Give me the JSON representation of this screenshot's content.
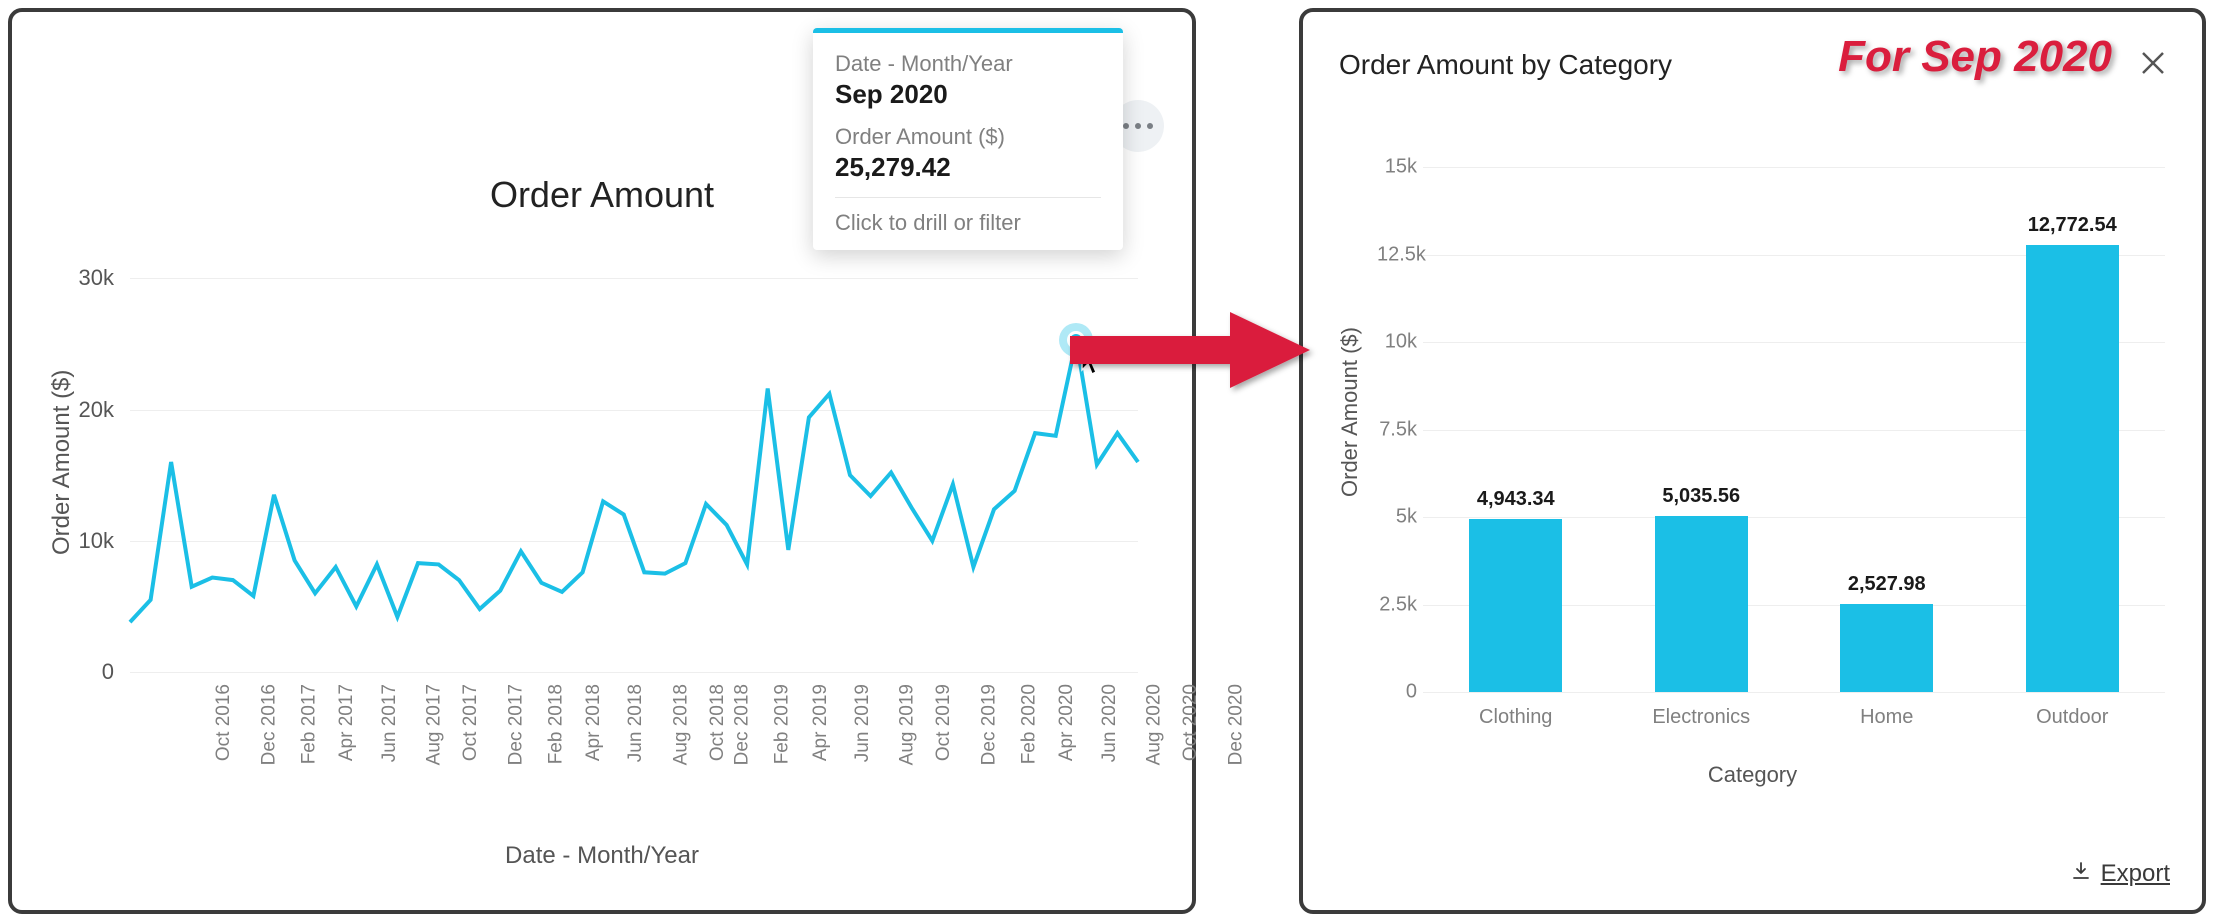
{
  "line_chart": {
    "type": "line",
    "title": "Order Amount",
    "y_label": "Order Amount ($)",
    "x_label": "Date - Month/Year",
    "line_color": "#1bbfe6",
    "line_width": 4,
    "grid_color": "#eeeeee",
    "background_color": "#ffffff",
    "title_fontsize": 36,
    "axis_label_fontsize": 24,
    "tick_fontsize": 22,
    "ylim": [
      0,
      32000
    ],
    "yticks": [
      {
        "v": 0,
        "label": "0"
      },
      {
        "v": 10000,
        "label": "10k"
      },
      {
        "v": 20000,
        "label": "20k"
      },
      {
        "v": 30000,
        "label": "30k"
      }
    ],
    "x_labels": [
      "Oct 2016",
      "Dec 2016",
      "Feb 2017",
      "Apr 2017",
      "Jun 2017",
      "Aug 2017",
      "Oct 2017",
      "Dec 2017",
      "Feb 2018",
      "Apr 2018",
      "Jun 2018",
      "Aug 2018",
      "Oct 2018",
      "Dec 2018",
      "Feb 2019",
      "Apr 2019",
      "Jun 2019",
      "Aug 2019",
      "Oct 2019",
      "Dec 2019",
      "Feb 2020",
      "Apr 2020",
      "Jun 2020",
      "Aug 2020",
      "Oct 2020",
      "Dec 2020"
    ],
    "values": [
      3800,
      5500,
      16000,
      6500,
      7200,
      7000,
      5800,
      13500,
      8500,
      6000,
      8000,
      5000,
      8200,
      4200,
      8300,
      8200,
      7000,
      4800,
      6200,
      9200,
      6800,
      6100,
      7600,
      13000,
      12000,
      7600,
      7500,
      8300,
      12800,
      11200,
      8200,
      21600,
      9300,
      19400,
      21200,
      15000,
      13400,
      15200,
      12500,
      10000,
      14300,
      8000,
      12400,
      13800,
      18200,
      18000,
      25279,
      15800,
      18200,
      16000
    ],
    "highlight_index": 46,
    "tooltip": {
      "field1_label": "Date - Month/Year",
      "field1_value": "Sep 2020",
      "field2_label": "Order Amount ($)",
      "field2_value": "25,279.42",
      "hint": "Click to drill or filter",
      "accent_color": "#1bbfe6"
    }
  },
  "bar_chart": {
    "type": "bar",
    "title": "Order Amount by Category",
    "y_label": "Order Amount ($)",
    "x_label": "Category",
    "bar_color": "#1bbfe6",
    "grid_color": "#eeeeee",
    "background_color": "#ffffff",
    "title_fontsize": 28,
    "axis_label_fontsize": 22,
    "tick_fontsize": 20,
    "bar_width_ratio": 0.5,
    "ylim": [
      0,
      16000
    ],
    "yticks": [
      {
        "v": 0,
        "label": "0"
      },
      {
        "v": 2500,
        "label": "2.5k"
      },
      {
        "v": 5000,
        "label": "5k"
      },
      {
        "v": 7500,
        "label": "7.5k"
      },
      {
        "v": 10000,
        "label": "10k"
      },
      {
        "v": 12500,
        "label": "12.5k"
      },
      {
        "v": 15000,
        "label": "15k"
      }
    ],
    "categories": [
      "Clothing",
      "Electronics",
      "Home",
      "Outdoor"
    ],
    "values": [
      4943.34,
      5035.56,
      2527.98,
      12772.54
    ],
    "value_labels": [
      "4,943.34",
      "5,035.56",
      "2,527.98",
      "12,772.54"
    ]
  },
  "annotation": {
    "text": "For Sep 2020",
    "color": "#da1e3d",
    "fontsize": 44,
    "arrow_color": "#da1e3d"
  },
  "controls": {
    "export_label": "Export"
  }
}
